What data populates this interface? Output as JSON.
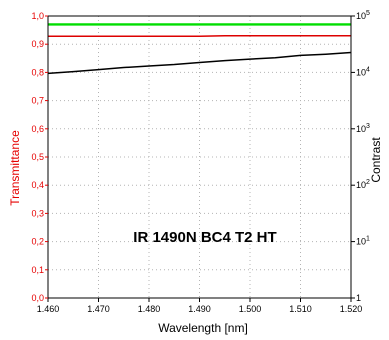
{
  "chart_data": {
    "type": "line",
    "annotation": "IR 1490N BC4 T2 HT",
    "xlabel": "Wavelength [nm]",
    "ylabel_left": "Transmittance",
    "ylabel_right": "Contrast",
    "xlim": [
      1.46,
      1.52
    ],
    "ylim_left": [
      0.0,
      1.0
    ],
    "ylim_right": [
      1,
      100000
    ],
    "right_axis_scale": "log",
    "grid": true,
    "x_ticks": [
      "1.460",
      "1.470",
      "1.480",
      "1.490",
      "1.500",
      "1.510",
      "1.520"
    ],
    "y_left_ticks": [
      "0,0",
      "0,1",
      "0,2",
      "0,3",
      "0,4",
      "0,5",
      "0,6",
      "0,7",
      "0,8",
      "0,9",
      "1,0"
    ],
    "y_right_ticks": [
      {
        "base": "1",
        "exp": ""
      },
      {
        "base": "10",
        "exp": "1"
      },
      {
        "base": "10",
        "exp": "2"
      },
      {
        "base": "10",
        "exp": "3"
      },
      {
        "base": "10",
        "exp": "4"
      },
      {
        "base": "10",
        "exp": "5"
      }
    ],
    "series": [
      {
        "axis": "left",
        "color": "#00dd00",
        "x": [
          1.46,
          1.47,
          1.48,
          1.49,
          1.5,
          1.51,
          1.52
        ],
        "y": [
          0.97,
          0.97,
          0.97,
          0.97,
          0.97,
          0.97,
          0.97
        ]
      },
      {
        "axis": "left",
        "color": "#dd0000",
        "x": [
          1.46,
          1.47,
          1.48,
          1.49,
          1.495,
          1.5,
          1.51,
          1.52
        ],
        "y": [
          0.928,
          0.928,
          0.928,
          0.928,
          0.93,
          0.93,
          0.93,
          0.93
        ]
      },
      {
        "axis": "right",
        "color": "#000000",
        "x": [
          1.46,
          1.465,
          1.47,
          1.475,
          1.48,
          1.485,
          1.49,
          1.495,
          1.5,
          1.505,
          1.51,
          1.515,
          1.52
        ],
        "y": [
          9600,
          10300,
          11200,
          12200,
          13000,
          13800,
          15000,
          16200,
          17200,
          18200,
          20000,
          21000,
          22500
        ]
      }
    ]
  }
}
